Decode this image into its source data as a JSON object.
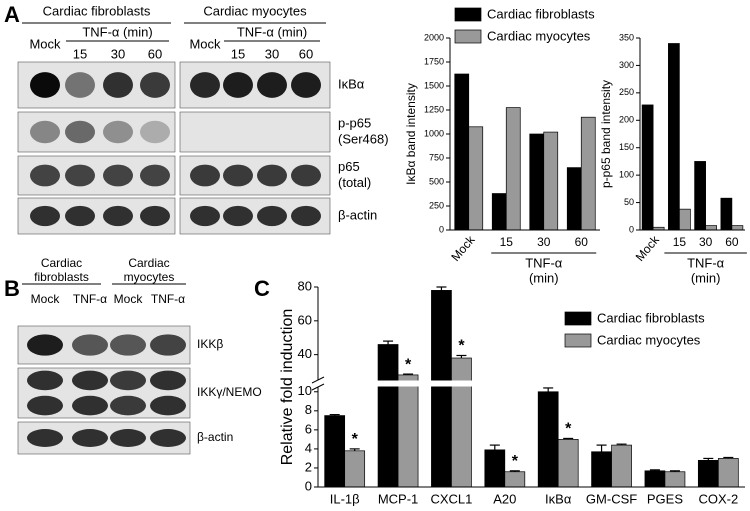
{
  "panel_labels": [
    "A",
    "B",
    "C"
  ],
  "blot_a": {
    "groups": [
      {
        "title": "Cardiac fibroblasts",
        "mock": "Mock",
        "treatment": "TNF-α (min)",
        "times": [
          "15",
          "30",
          "60"
        ]
      },
      {
        "title": "Cardiac myocytes",
        "mock": "Mock",
        "treatment": "TNF-α (min)",
        "times": [
          "15",
          "30",
          "60"
        ]
      }
    ],
    "rows": [
      [
        "IκBα"
      ],
      [
        "p-p65",
        "(Ser468)"
      ],
      [
        "p65",
        "(total)"
      ],
      [
        "β-actin"
      ]
    ]
  },
  "blot_b": {
    "groups": [
      {
        "title": [
          "Cardiac",
          "fibroblasts"
        ],
        "lanes": [
          "Mock",
          "TNF-α"
        ]
      },
      {
        "title": [
          "Cardiac",
          "myocytes"
        ],
        "lanes": [
          "Mock",
          "TNF-α"
        ]
      }
    ],
    "rows": [
      "IKKβ",
      "IKKγ/NEMO",
      "β-actin"
    ]
  },
  "chart_data": [
    {
      "type": "bar",
      "y_label": "IκBα band intensity",
      "categories": [
        "Mock",
        "15",
        "30",
        "60"
      ],
      "group_label": [
        "TNF-α",
        "(min)"
      ],
      "series": [
        {
          "name": "Cardiac fibroblasts",
          "color": "#000000",
          "values": [
            1625,
            380,
            1000,
            650
          ]
        },
        {
          "name": "Cardiac myocytes",
          "color": "#999999",
          "values": [
            1075,
            1275,
            1020,
            1175
          ]
        }
      ],
      "ylim": [
        0,
        2000
      ],
      "yticks": [
        0,
        250,
        500,
        750,
        1000,
        1250,
        1500,
        1750,
        2000
      ],
      "legend": "top"
    },
    {
      "type": "bar",
      "y_label": "p-p65 band intensity",
      "categories": [
        "Mock",
        "15",
        "30",
        "60"
      ],
      "group_label": [
        "TNF-α",
        "(min)"
      ],
      "series": [
        {
          "color": "#000000",
          "values": [
            228,
            340,
            125,
            58
          ]
        },
        {
          "color": "#999999",
          "values": [
            5,
            38,
            8,
            8
          ]
        }
      ],
      "ylim": [
        0,
        350
      ],
      "yticks": [
        0,
        50,
        100,
        150,
        200,
        250,
        300,
        350
      ]
    },
    {
      "type": "bar",
      "y_label": "Relative fold induction",
      "categories": [
        "IL-1β",
        "MCP-1",
        "CXCL1",
        "A20",
        "IκBα",
        "GM-CSF",
        "PGES",
        "COX-2"
      ],
      "series": [
        {
          "name": "Cardiac fibroblasts",
          "color": "#000000",
          "values": [
            7.5,
            46,
            78,
            3.9,
            10,
            3.7,
            1.7,
            2.8
          ],
          "errors": [
            0.1,
            2,
            2,
            0.5,
            0.4,
            0.7,
            0.1,
            0.2
          ]
        },
        {
          "name": "Cardiac myocytes",
          "color": "#999999",
          "values": [
            3.8,
            28,
            38,
            1.6,
            5,
            4.4,
            1.6,
            3.0
          ],
          "errors": [
            0.2,
            0.5,
            1.5,
            0.1,
            0.1,
            0.1,
            0.1,
            0.1
          ],
          "significance": [
            "*",
            "*",
            "*",
            "*",
            "*",
            null,
            null,
            null
          ]
        }
      ],
      "ylim": [
        0,
        80
      ],
      "axis_break": [
        10.5,
        25
      ],
      "yticks": [
        0,
        2,
        4,
        6,
        8,
        10,
        40,
        60,
        80
      ],
      "legend": "upper right"
    }
  ]
}
